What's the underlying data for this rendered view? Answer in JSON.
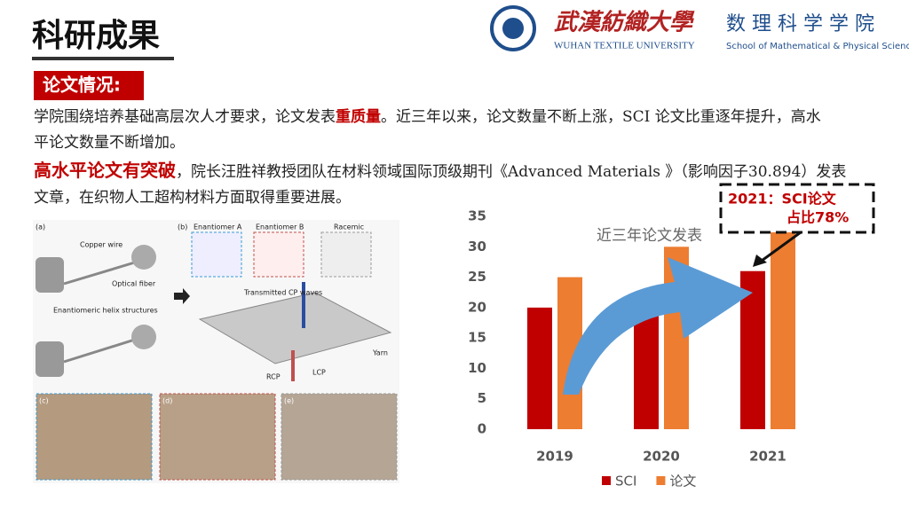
{
  "header": {
    "title": "科研成果",
    "university_cn": "武漢紡織大學",
    "school_cn": "数 理 科 学 学 院",
    "university_en": "WUHAN TEXTILE UNIVERSITY",
    "school_en": "School of Mathematical & Physical Sciences"
  },
  "section": {
    "label": "论文情况:"
  },
  "paragraphs": [
    [
      "学院围绕培养基础高层次人才要求，论文发表",
      "重质量",
      "。近三年以来，论文数量不断上涨，SCI 论文比重逐年提升，高水平论文数量不断增加。"
    ],
    [
      "高水平论文有突破",
      "，院长汪胜祥教授团队在材料领域国际顶级期刊《Advanced Materials 》（影响因子30.894）发表文章，在织物人工超构材料方面取得重要进展。"
    ]
  ],
  "figure": {
    "labels": [
      "(a)",
      "(b)",
      "Copper wire",
      "Optical fiber",
      "Enantiomeric helix structures",
      "Enantiomer A",
      "Enantiomer B",
      "Racemic",
      "Transmitted CP waves",
      "Yarn",
      "RCP",
      "LCP",
      "(c)",
      "(d)",
      "(e)"
    ]
  },
  "chart_data": {
    "type": "bar",
    "title": "近三年论文发表",
    "categories": [
      "2019",
      "2020",
      "2021"
    ],
    "series": [
      {
        "name": "SCI",
        "color": "#c00000",
        "values": [
          20,
          22,
          26
        ]
      },
      {
        "name": "论文",
        "color": "#ed7d31",
        "values": [
          25,
          30,
          33
        ]
      }
    ],
    "ylim": [
      0,
      35
    ],
    "yticks": [
      0,
      5,
      10,
      15,
      20,
      25,
      30,
      35
    ],
    "grid": false,
    "annotation": [
      "2021：SCI论文",
      "占比78%"
    ]
  }
}
